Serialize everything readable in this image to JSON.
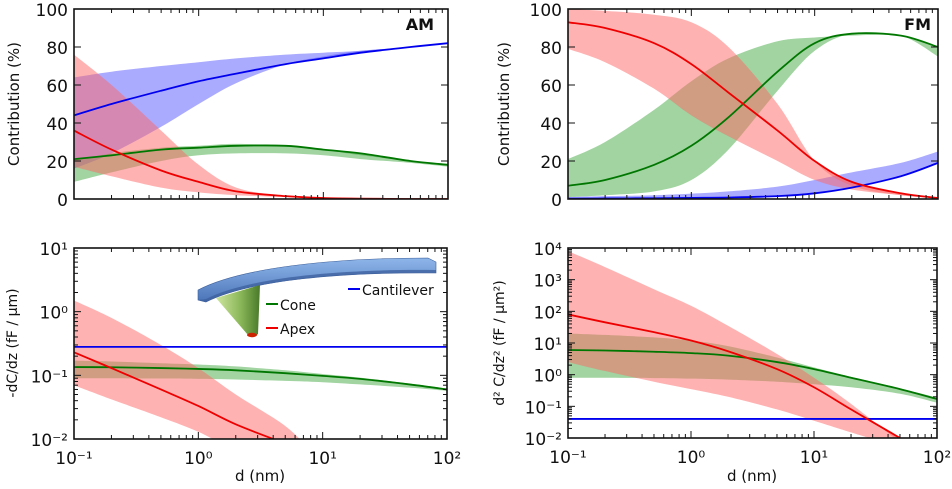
{
  "figure": {
    "colors": {
      "cantilever": "#0000ee",
      "cone": "#007700",
      "apex": "#ee0000",
      "cantilever_band": "#5555ff",
      "cone_band": "#44aa44",
      "apex_band": "#ff6666"
    },
    "legend": {
      "items": [
        {
          "key": "cantilever",
          "label": "Cantilever"
        },
        {
          "key": "cone",
          "label": "Cone"
        },
        {
          "key": "apex",
          "label": "Apex"
        }
      ]
    }
  },
  "chart_data": [
    {
      "id": "am-contribution",
      "type": "area",
      "panel_label": "AM",
      "title": "",
      "xlabel": "",
      "ylabel": "Contribution (%)",
      "xscale": "log",
      "xlim": [
        0.1,
        100
      ],
      "ylim": [
        0,
        100
      ],
      "yticks": [
        0,
        20,
        40,
        60,
        80,
        100
      ],
      "ytick_labels": [
        "0",
        "20",
        "40",
        "60",
        "80",
        "100"
      ],
      "xtick_labels": [],
      "x": [
        0.1,
        0.2,
        0.5,
        1,
        2,
        5,
        10,
        20,
        50,
        100
      ],
      "series": [
        {
          "name": "Cantilever",
          "key": "cantilever",
          "line": [
            44,
            50,
            57,
            62,
            66,
            71,
            74,
            77,
            80,
            82
          ],
          "band_a": [
            64,
            67,
            70,
            72,
            74,
            76,
            77,
            78,
            80,
            82
          ],
          "band_b": [
            16,
            24,
            38,
            50,
            61,
            71,
            75,
            78,
            80,
            82
          ]
        },
        {
          "name": "Cone",
          "key": "cone",
          "line": [
            21,
            23,
            26,
            27,
            28,
            28,
            26,
            24,
            20,
            18
          ],
          "band_a": [
            20,
            24,
            27,
            28,
            29,
            28,
            26,
            23,
            20,
            18
          ],
          "band_b": [
            9,
            14,
            20,
            23,
            24,
            24,
            23,
            21,
            19,
            17
          ]
        },
        {
          "name": "Apex",
          "key": "apex",
          "line": [
            36,
            26,
            15,
            9,
            4,
            1.5,
            0.5,
            0.2,
            0,
            0
          ],
          "band_a": [
            76,
            60,
            36,
            18,
            6,
            1.5,
            0.5,
            0.2,
            0,
            0
          ],
          "band_b": [
            17,
            12,
            6,
            3.5,
            2,
            1,
            0.3,
            0.1,
            0,
            0
          ]
        }
      ]
    },
    {
      "id": "fm-contribution",
      "type": "area",
      "panel_label": "FM",
      "title": "",
      "xlabel": "",
      "ylabel": "Contribution (%)",
      "xscale": "log",
      "xlim": [
        0.1,
        100
      ],
      "ylim": [
        0,
        100
      ],
      "yticks": [
        0,
        20,
        40,
        60,
        80,
        100
      ],
      "ytick_labels": [
        "0",
        "20",
        "40",
        "60",
        "80",
        "100"
      ],
      "xtick_labels": [],
      "x": [
        0.1,
        0.2,
        0.5,
        1,
        2,
        5,
        10,
        20,
        50,
        100
      ],
      "series": [
        {
          "name": "Cantilever",
          "key": "cantilever",
          "line": [
            0.2,
            0.3,
            0.4,
            0.6,
            0.8,
            1.5,
            3,
            6,
            12,
            19
          ],
          "band_a": [
            1,
            1.5,
            2,
            2.8,
            4,
            6.5,
            10,
            14,
            19,
            25
          ],
          "band_b": [
            0.2,
            0.3,
            0.4,
            0.6,
            0.8,
            1.5,
            3,
            6,
            12,
            19
          ]
        },
        {
          "name": "Cone",
          "key": "cone",
          "line": [
            7,
            10,
            18,
            28,
            43,
            67,
            82,
            87,
            86,
            80
          ],
          "band_a": [
            21,
            30,
            47,
            62,
            74,
            83,
            85,
            86,
            86,
            80
          ],
          "band_b": [
            1,
            2,
            4,
            10,
            26,
            57,
            78,
            87,
            86,
            75
          ]
        },
        {
          "name": "Apex",
          "key": "apex",
          "line": [
            93,
            90,
            82,
            71,
            56,
            36,
            20,
            9,
            3,
            0.5
          ],
          "band_a": [
            100,
            99,
            97,
            93,
            80,
            50,
            20,
            7,
            2,
            0.5
          ],
          "band_b": [
            79,
            72,
            58,
            44,
            33,
            20,
            10,
            5,
            2,
            0.5
          ]
        }
      ]
    },
    {
      "id": "am-dcdz",
      "type": "area",
      "title": "",
      "xlabel": "d (nm)",
      "ylabel": "-dC/dz (fF / µm)",
      "xscale": "log",
      "yscale": "log",
      "xlim": [
        0.1,
        100
      ],
      "ylim": [
        0.01,
        10
      ],
      "xtick_labels": [
        "10⁻¹",
        "10⁰",
        "10¹",
        "10²"
      ],
      "ytick_labels": [
        "10⁻²",
        "10⁻¹",
        "10⁰",
        "10¹"
      ],
      "x": [
        0.1,
        0.2,
        0.5,
        1,
        2,
        5,
        10,
        20,
        50,
        100
      ],
      "series": [
        {
          "name": "Cantilever",
          "key": "cantilever",
          "line": [
            0.28,
            0.28,
            0.28,
            0.28,
            0.28,
            0.28,
            0.28,
            0.28,
            0.28,
            0.28
          ]
        },
        {
          "name": "Cone",
          "key": "cone",
          "line": [
            0.135,
            0.134,
            0.13,
            0.126,
            0.12,
            0.108,
            0.098,
            0.088,
            0.072,
            0.06
          ],
          "band_a": [
            0.17,
            0.165,
            0.155,
            0.148,
            0.138,
            0.12,
            0.105,
            0.092,
            0.074,
            0.062
          ],
          "band_b": [
            0.09,
            0.09,
            0.089,
            0.088,
            0.086,
            0.082,
            0.078,
            0.072,
            0.064,
            0.057
          ]
        },
        {
          "name": "Apex",
          "key": "apex",
          "line": [
            0.23,
            0.13,
            0.06,
            0.033,
            0.017,
            0.0085
          ],
          "band_a": [
            1.5,
            0.8,
            0.3,
            0.13,
            0.05,
            0.016,
            0.0065
          ],
          "band_b": [
            0.07,
            0.042,
            0.022,
            0.013,
            0.0075
          ],
          "x_line": [
            0.1,
            0.2,
            0.5,
            1,
            2,
            5
          ],
          "x_band_a": [
            0.1,
            0.2,
            0.5,
            1,
            2,
            5,
            8
          ],
          "x_band_b": [
            0.1,
            0.2,
            0.5,
            1,
            1.7
          ]
        }
      ]
    },
    {
      "id": "fm-d2cdz2",
      "type": "area",
      "title": "",
      "xlabel": "d (nm)",
      "ylabel": "d² C/dz² (fF / µm²)",
      "xscale": "log",
      "yscale": "log",
      "xlim": [
        0.1,
        100
      ],
      "ylim": [
        0.01,
        10000
      ],
      "xtick_labels": [
        "10⁻¹",
        "10⁰",
        "10¹",
        "10²"
      ],
      "ytick_labels": [
        "10⁻²",
        "10⁻¹",
        "10⁰",
        "10¹",
        "10²",
        "10³",
        "10⁴"
      ],
      "x": [
        0.1,
        0.2,
        0.5,
        1,
        2,
        5,
        10,
        20,
        50,
        100
      ],
      "series": [
        {
          "name": "Cantilever",
          "key": "cantilever",
          "line": [
            0.04,
            0.04,
            0.04,
            0.04,
            0.04,
            0.04,
            0.04,
            0.04,
            0.04,
            0.04
          ]
        },
        {
          "name": "Cone",
          "key": "cone",
          "line": [
            6,
            5.8,
            5.3,
            4.8,
            4,
            2.5,
            1.5,
            0.8,
            0.35,
            0.17
          ],
          "band_a": [
            20,
            18,
            15,
            12,
            8,
            3.5,
            1.7,
            0.85,
            0.37,
            0.19
          ],
          "band_b": [
            0.8,
            0.8,
            0.78,
            0.75,
            0.7,
            0.6,
            0.5,
            0.4,
            0.25,
            0.13
          ]
        },
        {
          "name": "Apex",
          "key": "apex",
          "line": [
            80,
            45,
            22,
            12,
            5.5,
            1.5,
            0.4,
            0.08,
            0.01
          ],
          "band_a": [
            8000,
            2500,
            500,
            150,
            35,
            4.5,
            0.8,
            0.12,
            0.01
          ],
          "band_b": [
            2.5,
            1.3,
            0.6,
            0.35,
            0.2,
            0.08,
            0.035,
            0.015,
            0.01
          ],
          "x_line": [
            0.1,
            0.2,
            0.5,
            1,
            2,
            5,
            10,
            20,
            50
          ],
          "x_band_a": [
            0.1,
            0.2,
            0.5,
            1,
            2,
            5,
            10,
            20,
            45
          ],
          "x_band_b": [
            0.1,
            0.2,
            0.5,
            1,
            2,
            5,
            10,
            20,
            28
          ]
        }
      ]
    }
  ]
}
